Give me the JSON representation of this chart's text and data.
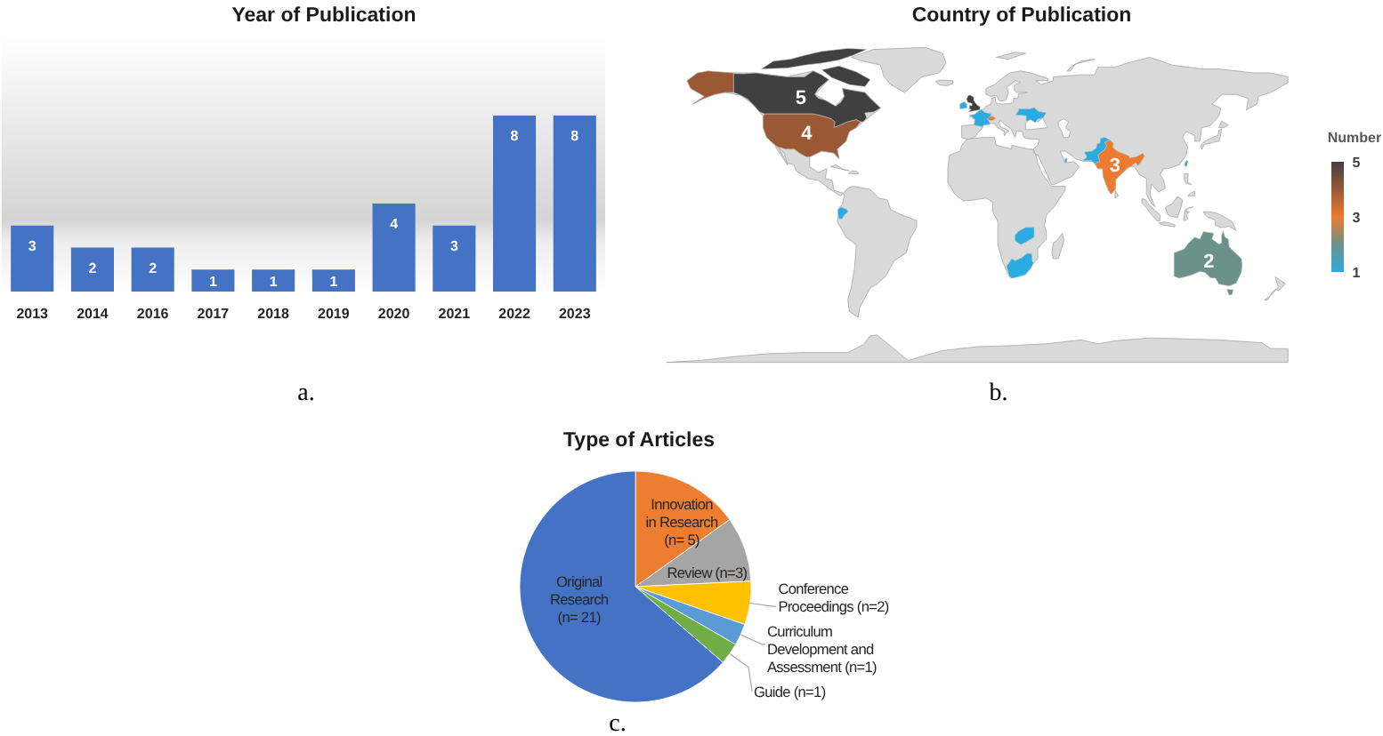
{
  "chart_data": [
    {
      "type": "bar",
      "title": "Year of Publication",
      "categories": [
        "2013",
        "2014",
        "2016",
        "2017",
        "2018",
        "2019",
        "2020",
        "2021",
        "2022",
        "2023"
      ],
      "values": [
        3,
        2,
        2,
        1,
        1,
        1,
        4,
        3,
        8,
        8
      ],
      "color": "#4472c4",
      "data_labels": true,
      "annotations": [
        "a."
      ]
    },
    {
      "type": "other",
      "title": "Country of Publication",
      "categories": [
        null,
        null,
        null,
        null,
        null,
        null,
        null,
        null,
        null,
        null,
        null,
        null,
        null,
        null,
        null
      ],
      "values": [
        5,
        4,
        null,
        null,
        null,
        null,
        null,
        null,
        3,
        null,
        null,
        null,
        null,
        null,
        2
      ],
      "colors": [
        "#404040",
        "#9a5934",
        "#404040",
        "#2aace2",
        "#2aace2",
        "#ec7a2f",
        "#2aace2",
        "#2aace2",
        "#ec7a2f",
        "#2aace2",
        "#2aace2",
        "#2aace2",
        "#2aace2",
        "#2aace2",
        "#6b918b"
      ],
      "data_labels": true,
      "clabel": "Number",
      "annotations": [
        "5",
        "3",
        "1",
        "b."
      ]
    },
    {
      "type": "pie",
      "title": "Type of Articles",
      "categories": [
        "Innovation in Research",
        "Review",
        "Conference Proceedings",
        "Curriculum Development and Assessment",
        "Guide",
        "Original Research"
      ],
      "values": [
        5,
        3,
        2,
        1,
        1,
        21
      ],
      "value_labels": [
        "(n= 5)",
        "(n=3)",
        "(n=2)",
        "(n=1)",
        "(n=1)",
        "(n= 21)"
      ],
      "colors": [
        "#ed7d31",
        "#a5a5a5",
        "#ffc000",
        "#5b9bd5",
        "#70ad47",
        "#4472c4"
      ],
      "annotations": [
        "c."
      ]
    }
  ]
}
